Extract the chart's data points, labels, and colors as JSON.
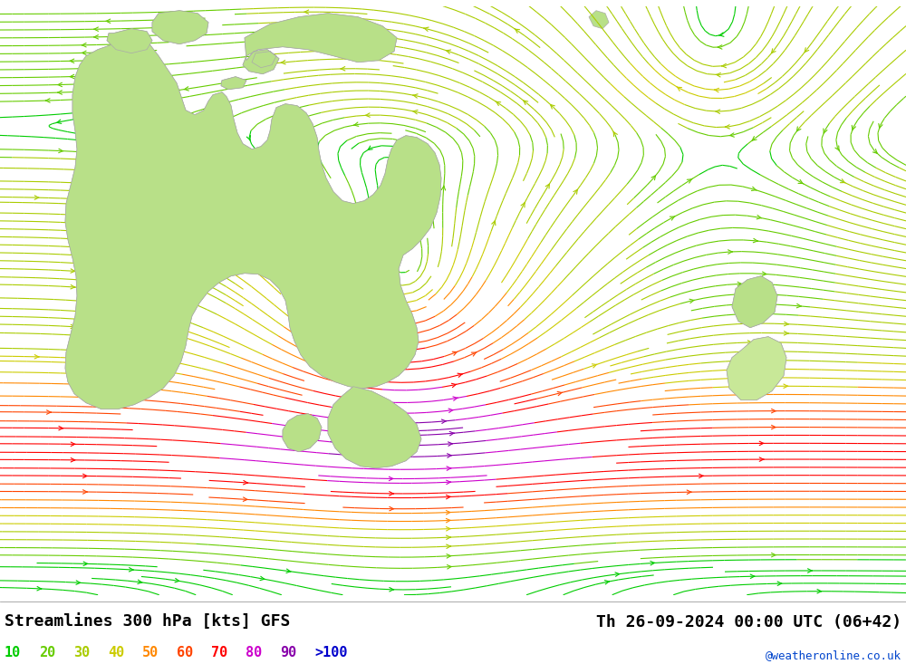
{
  "title_left": "Streamlines 300 hPa [kts] GFS",
  "title_right": "Th 26-09-2024 00:00 UTC (06+42)",
  "watermark": "@weatheronline.co.uk",
  "background_color": "#ffffff",
  "map_background": "#d8d8d8",
  "land_color": "#b8e088",
  "land_edge": "#aaaaaa",
  "legend_labels": [
    "10",
    "20",
    "30",
    "40",
    "50",
    "60",
    "70",
    "80",
    "90",
    ">100"
  ],
  "legend_colors": [
    "#00cc00",
    "#88cc00",
    "#cccc00",
    "#ccaa00",
    "#ff8800",
    "#ff4400",
    "#ff0000",
    "#dd00dd",
    "#8800cc",
    "#0000cc"
  ],
  "speed_colors": {
    "10": "#00cc00",
    "20": "#66cc00",
    "30": "#aacc00",
    "40": "#ccaa00",
    "50": "#ff8800",
    "60": "#ff5500",
    "70": "#ff0000",
    "80": "#dd00dd",
    "90": "#8800cc",
    "100": "#0000cc"
  },
  "figsize": [
    10.0,
    7.33
  ],
  "dpi": 100
}
